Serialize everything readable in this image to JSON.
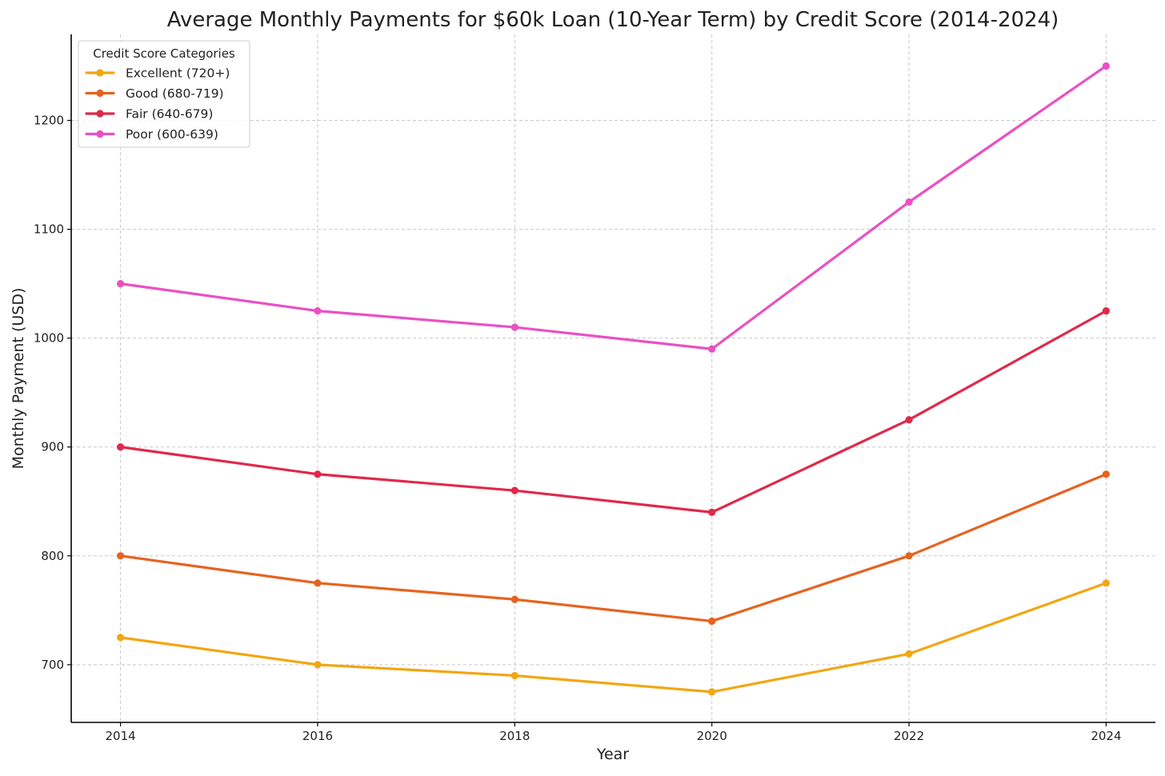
{
  "chart_data": {
    "type": "line",
    "title": "Average Monthly Payments for $60k Loan (10-Year Term) by Credit Score (2014-2024)",
    "xlabel": "Year",
    "ylabel": "Monthly Payment (USD)",
    "x": [
      2014,
      2016,
      2018,
      2020,
      2022,
      2024
    ],
    "xticks": [
      "2014",
      "2016",
      "2018",
      "2020",
      "2022",
      "2024"
    ],
    "yticks": [
      700,
      800,
      900,
      1000,
      1100,
      1200
    ],
    "xlim": [
      2013.5,
      2024.5
    ],
    "ylim": [
      647,
      1279
    ],
    "grid": true,
    "legend": {
      "title": "Credit Score Categories",
      "position": "top-left"
    },
    "series": [
      {
        "name": "Excellent (720+)",
        "color": "#F2A612",
        "values": [
          725,
          700,
          690,
          675,
          710,
          775
        ]
      },
      {
        "name": "Good (680-719)",
        "color": "#E6631F",
        "values": [
          800,
          775,
          760,
          740,
          800,
          875
        ]
      },
      {
        "name": "Fair (640-679)",
        "color": "#E0294A",
        "values": [
          900,
          875,
          860,
          840,
          925,
          1025
        ]
      },
      {
        "name": "Poor (600-639)",
        "color": "#EA50C4",
        "values": [
          1050,
          1025,
          1010,
          990,
          1125,
          1250
        ]
      }
    ]
  }
}
